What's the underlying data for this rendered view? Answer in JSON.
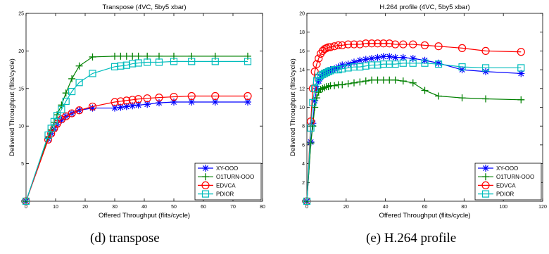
{
  "captions": [
    "(d) transpose",
    "(e) H.264 profile"
  ],
  "chart_data": [
    {
      "type": "line",
      "title": "Transpose (4VC, 5by5 xbar)",
      "xlabel": "Offered Throughput (flits/cycle)",
      "ylabel": "Delivered Throughput (flits/cycle)",
      "xlim": [
        0,
        80
      ],
      "ylim": [
        0,
        25
      ],
      "xticks": [
        0,
        10,
        20,
        30,
        40,
        50,
        60,
        70,
        80
      ],
      "yticks": [
        0,
        5,
        10,
        15,
        20,
        25
      ],
      "grid": false,
      "legend_position": "bottom-right",
      "series": [
        {
          "name": "XY-OOO",
          "color": "#0000ff",
          "marker": "asterisk",
          "x": [
            0,
            7.5,
            8.5,
            9.5,
            10.5,
            12,
            13.5,
            15.5,
            18,
            22.5,
            30,
            32,
            34,
            36,
            38,
            41,
            45,
            50,
            56,
            64,
            75
          ],
          "y": [
            0,
            8.3,
            9.0,
            9.6,
            10.2,
            10.8,
            11.3,
            11.7,
            12.1,
            12.4,
            12.4,
            12.5,
            12.6,
            12.7,
            12.8,
            12.9,
            13.1,
            13.2,
            13.2,
            13.2,
            13.2
          ]
        },
        {
          "name": "O1TURN-OOO",
          "color": "#008000",
          "marker": "plus",
          "x": [
            0,
            7.5,
            8.5,
            9.5,
            10.5,
            12,
            13.5,
            15.5,
            18,
            22.5,
            30,
            32,
            34,
            36,
            38,
            41,
            45,
            50,
            56,
            64,
            75
          ],
          "y": [
            0,
            8.5,
            9.5,
            10.5,
            11.5,
            12.8,
            14.4,
            16.3,
            18.0,
            19.2,
            19.3,
            19.3,
            19.3,
            19.3,
            19.3,
            19.3,
            19.3,
            19.3,
            19.3,
            19.3,
            19.3
          ]
        },
        {
          "name": "EDVCA",
          "color": "#ff0000",
          "marker": "circle",
          "x": [
            0,
            7.5,
            8.5,
            9.5,
            10.5,
            12,
            13.5,
            15.5,
            18,
            22.5,
            30,
            32,
            34,
            36,
            38,
            41,
            45,
            50,
            56,
            64,
            75
          ],
          "y": [
            0,
            8.2,
            9.0,
            9.7,
            10.3,
            10.9,
            11.3,
            11.7,
            12.1,
            12.6,
            13.2,
            13.3,
            13.4,
            13.5,
            13.6,
            13.7,
            13.8,
            13.9,
            14.0,
            14.0,
            14.0
          ]
        },
        {
          "name": "PDIOR",
          "color": "#00bcbc",
          "marker": "square",
          "x": [
            0,
            7.5,
            8.5,
            9.5,
            10.5,
            12,
            13.5,
            15.5,
            18,
            22.5,
            30,
            32,
            34,
            36,
            38,
            41,
            45,
            50,
            56,
            64,
            75
          ],
          "y": [
            0,
            8.8,
            9.7,
            10.6,
            11.4,
            12.2,
            13.3,
            14.6,
            15.8,
            17.0,
            17.9,
            18.0,
            18.1,
            18.3,
            18.4,
            18.5,
            18.5,
            18.6,
            18.6,
            18.6,
            18.6
          ]
        }
      ]
    },
    {
      "type": "line",
      "title": "H.264 profile (4VC, 5by5 xbar)",
      "xlabel": "Offered Throughput (flits/cycle)",
      "ylabel": "Delivered Throughput (flits/cycle)",
      "xlim": [
        0,
        120
      ],
      "ylim": [
        0,
        20
      ],
      "xticks": [
        0,
        20,
        40,
        60,
        80,
        100,
        120
      ],
      "yticks": [
        0,
        2,
        4,
        6,
        8,
        10,
        12,
        14,
        16,
        18,
        20
      ],
      "grid": false,
      "legend_position": "bottom-right",
      "series": [
        {
          "name": "XY-OOO",
          "color": "#0000ff",
          "marker": "asterisk",
          "x": [
            0,
            2,
            3,
            4,
            5,
            6,
            7,
            8,
            9,
            10,
            11,
            12,
            14,
            16,
            18,
            21,
            24,
            27,
            30,
            33,
            36,
            39,
            42,
            45,
            49,
            54,
            60,
            67,
            79,
            91,
            109
          ],
          "y": [
            0,
            6.3,
            8.3,
            10.7,
            12.0,
            12.8,
            13.2,
            13.5,
            13.7,
            13.8,
            13.9,
            14.0,
            14.1,
            14.3,
            14.5,
            14.6,
            14.8,
            15.0,
            15.1,
            15.2,
            15.3,
            15.4,
            15.4,
            15.3,
            15.3,
            15.2,
            15.0,
            14.7,
            14.0,
            13.8,
            13.6
          ]
        },
        {
          "name": "O1TURN-OOO",
          "color": "#008000",
          "marker": "plus",
          "x": [
            0,
            2,
            3,
            4,
            5,
            6,
            7,
            8,
            9,
            10,
            11,
            12,
            14,
            16,
            18,
            21,
            24,
            27,
            30,
            33,
            36,
            39,
            42,
            45,
            49,
            54,
            60,
            67,
            79,
            91,
            109
          ],
          "y": [
            0,
            6.2,
            8.0,
            10.0,
            11.0,
            11.6,
            11.9,
            12.0,
            12.1,
            12.2,
            12.2,
            12.3,
            12.3,
            12.4,
            12.4,
            12.5,
            12.6,
            12.7,
            12.8,
            12.9,
            12.9,
            12.9,
            12.9,
            12.9,
            12.8,
            12.6,
            11.8,
            11.2,
            11.0,
            10.9,
            10.8
          ]
        },
        {
          "name": "EDVCA",
          "color": "#ff0000",
          "marker": "circle",
          "x": [
            0,
            2,
            3,
            4,
            5,
            6,
            7,
            8,
            9,
            10,
            11,
            12,
            14,
            16,
            18,
            21,
            24,
            27,
            30,
            33,
            36,
            39,
            42,
            45,
            49,
            54,
            60,
            67,
            79,
            91,
            109
          ],
          "y": [
            0,
            8.5,
            12.0,
            13.8,
            14.6,
            15.2,
            15.7,
            16.0,
            16.2,
            16.3,
            16.4,
            16.4,
            16.5,
            16.6,
            16.6,
            16.7,
            16.7,
            16.7,
            16.8,
            16.8,
            16.8,
            16.8,
            16.8,
            16.7,
            16.7,
            16.7,
            16.6,
            16.5,
            16.3,
            16.0,
            15.9
          ]
        },
        {
          "name": "PDIOR",
          "color": "#00bcbc",
          "marker": "square",
          "x": [
            0,
            2,
            3,
            4,
            5,
            6,
            7,
            8,
            9,
            10,
            11,
            12,
            14,
            16,
            18,
            21,
            24,
            27,
            30,
            33,
            36,
            39,
            42,
            45,
            49,
            54,
            60,
            67,
            79,
            91,
            109
          ],
          "y": [
            0,
            7.8,
            10.5,
            12.0,
            12.8,
            13.2,
            13.4,
            13.5,
            13.6,
            13.7,
            13.8,
            13.9,
            14.0,
            14.0,
            14.1,
            14.2,
            14.3,
            14.3,
            14.4,
            14.5,
            14.5,
            14.6,
            14.6,
            14.6,
            14.7,
            14.7,
            14.7,
            14.6,
            14.3,
            14.2,
            14.2
          ]
        }
      ]
    }
  ]
}
